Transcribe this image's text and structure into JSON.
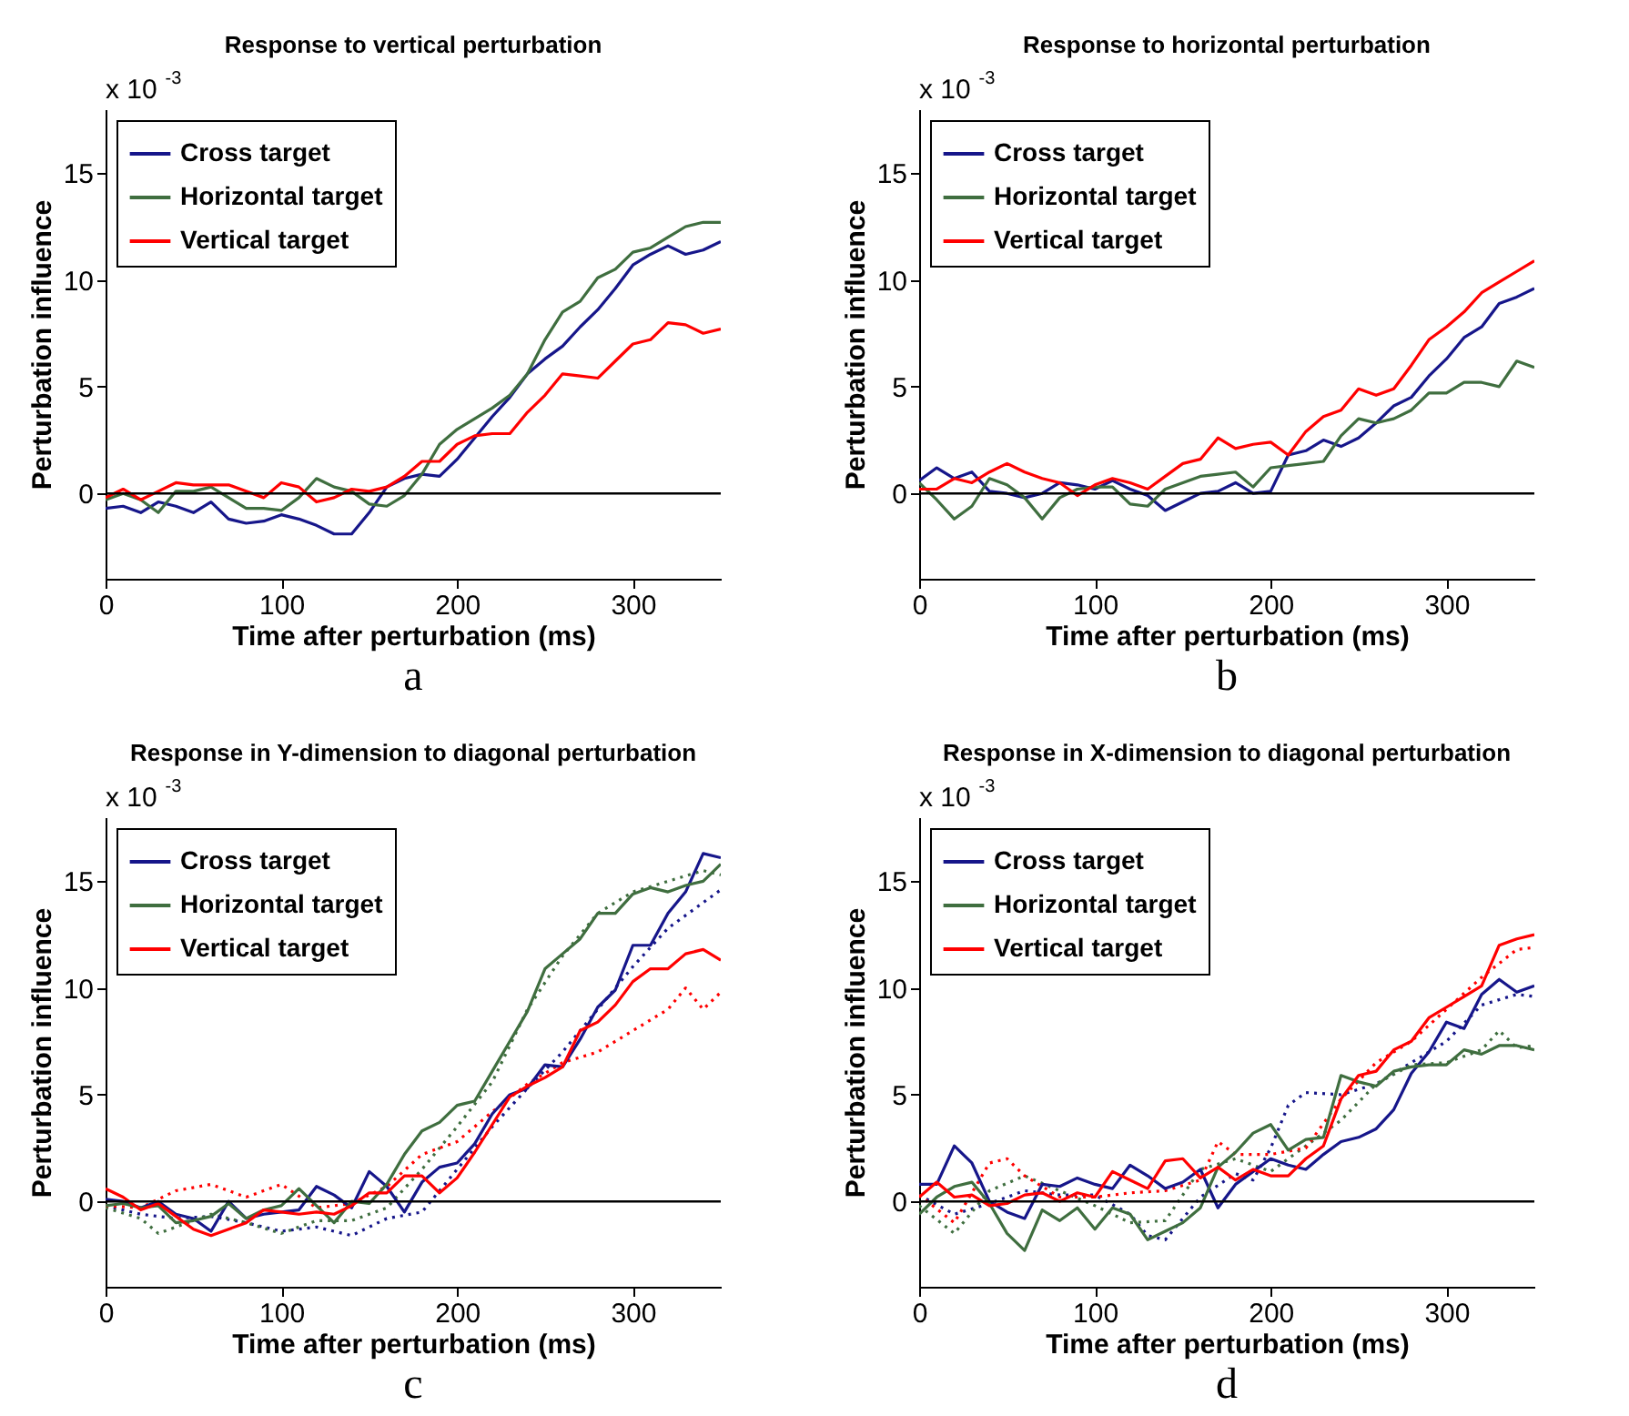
{
  "chart_data": [
    {
      "type": "line",
      "title": "Response to vertical perturbation",
      "xlabel": "Time after perturbation (ms)",
      "ylabel": "Perturbation influence",
      "xlim": [
        0,
        350
      ],
      "ylim": [
        -4,
        18
      ],
      "xticks": [
        0,
        100,
        200,
        300
      ],
      "yticks": [
        0,
        5,
        10,
        15
      ],
      "legend": "top left",
      "ref_lines": [
        {
          "axis": "y",
          "value": 0,
          "color": "#000000"
        }
      ],
      "annotations": [
        "x 10$^{-3}$",
        "a"
      ],
      "x": [
        0,
        10,
        20,
        30,
        40,
        50,
        60,
        70,
        80,
        90,
        100,
        110,
        120,
        130,
        140,
        150,
        160,
        170,
        180,
        190,
        200,
        210,
        220,
        230,
        240,
        250,
        260,
        270,
        280,
        290,
        300,
        310,
        320,
        330,
        340,
        350
      ],
      "series": [
        {
          "name": "Cross target",
          "color": "#16168a",
          "values": [
            -0.7,
            -0.6,
            -0.9,
            -0.4,
            -0.6,
            -0.9,
            -0.4,
            -1.2,
            -1.4,
            -1.3,
            -1.0,
            -1.2,
            -1.5,
            -1.9,
            -1.9,
            -0.9,
            0.3,
            0.7,
            0.9,
            0.8,
            1.6,
            2.6,
            3.6,
            4.5,
            5.6,
            6.3,
            6.9,
            7.8,
            8.6,
            9.6,
            10.7,
            11.2,
            11.6,
            11.2,
            11.4,
            11.8
          ]
        },
        {
          "name": "Horizontal target",
          "color": "#3f6e3f",
          "values": [
            -0.3,
            0.0,
            -0.3,
            -0.9,
            0.1,
            0.1,
            0.3,
            -0.2,
            -0.7,
            -0.7,
            -0.8,
            -0.2,
            0.7,
            0.3,
            0.1,
            -0.5,
            -0.6,
            -0.1,
            0.9,
            2.3,
            3.0,
            3.5,
            4.0,
            4.6,
            5.6,
            7.2,
            8.5,
            9.0,
            10.1,
            10.5,
            11.3,
            11.5,
            12.0,
            12.5,
            12.7,
            12.7
          ]
        },
        {
          "name": "Vertical target",
          "color": "#ff0000",
          "values": [
            -0.2,
            0.2,
            -0.3,
            0.1,
            0.5,
            0.4,
            0.4,
            0.4,
            0.1,
            -0.2,
            0.5,
            0.3,
            -0.4,
            -0.2,
            0.2,
            0.1,
            0.3,
            0.8,
            1.5,
            1.5,
            2.3,
            2.7,
            2.8,
            2.8,
            3.8,
            4.6,
            5.6,
            5.5,
            5.4,
            6.2,
            7.0,
            7.2,
            8.0,
            7.9,
            7.5,
            7.7
          ]
        }
      ]
    },
    {
      "type": "line",
      "title": "Response to horizontal perturbation",
      "xlabel": "Time after perturbation (ms)",
      "ylabel": "Perturbation influence",
      "xlim": [
        0,
        350
      ],
      "ylim": [
        -4,
        18
      ],
      "xticks": [
        0,
        100,
        200,
        300
      ],
      "yticks": [
        0,
        5,
        10,
        15
      ],
      "legend": "top left",
      "ref_lines": [
        {
          "axis": "y",
          "value": 0,
          "color": "#000000"
        }
      ],
      "annotations": [
        "x 10$^{-3}$",
        "b"
      ],
      "x": [
        0,
        10,
        20,
        30,
        40,
        50,
        60,
        70,
        80,
        90,
        100,
        110,
        120,
        130,
        140,
        150,
        160,
        170,
        180,
        190,
        200,
        210,
        220,
        230,
        240,
        250,
        260,
        270,
        280,
        290,
        300,
        310,
        320,
        330,
        340,
        350
      ],
      "series": [
        {
          "name": "Cross target",
          "color": "#16168a",
          "values": [
            0.6,
            1.2,
            0.7,
            1.0,
            0.1,
            0.0,
            -0.2,
            0.0,
            0.5,
            0.4,
            0.2,
            0.6,
            0.2,
            -0.1,
            -0.8,
            -0.4,
            0.0,
            0.1,
            0.5,
            0.0,
            0.1,
            1.8,
            2.0,
            2.5,
            2.2,
            2.6,
            3.3,
            4.1,
            4.5,
            5.5,
            6.3,
            7.3,
            7.8,
            8.9,
            9.2,
            9.6
          ]
        },
        {
          "name": "Horizontal target",
          "color": "#3f6e3f",
          "values": [
            0.5,
            -0.3,
            -1.2,
            -0.6,
            0.7,
            0.4,
            -0.2,
            -1.2,
            -0.2,
            0.2,
            0.3,
            0.3,
            -0.5,
            -0.6,
            0.2,
            0.5,
            0.8,
            0.9,
            1.0,
            0.3,
            1.2,
            1.3,
            1.4,
            1.5,
            2.7,
            3.5,
            3.3,
            3.5,
            3.9,
            4.7,
            4.7,
            5.2,
            5.2,
            5.0,
            6.2,
            5.9
          ]
        },
        {
          "name": "Vertical target",
          "color": "#ff0000",
          "values": [
            0.2,
            0.2,
            0.7,
            0.5,
            1.0,
            1.4,
            1.0,
            0.7,
            0.5,
            -0.1,
            0.4,
            0.7,
            0.5,
            0.2,
            0.8,
            1.4,
            1.6,
            2.6,
            2.1,
            2.3,
            2.4,
            1.8,
            2.9,
            3.6,
            3.9,
            4.9,
            4.6,
            4.9,
            6.0,
            7.2,
            7.8,
            8.5,
            9.4,
            9.9,
            10.4,
            10.9
          ]
        }
      ]
    },
    {
      "type": "line",
      "title": "Response in Y-dimension to diagonal perturbation",
      "xlabel": "Time after perturbation (ms)",
      "ylabel": "Perturbation influence",
      "xlim": [
        0,
        350
      ],
      "ylim": [
        -4,
        18
      ],
      "xticks": [
        0,
        100,
        200,
        300
      ],
      "yticks": [
        0,
        5,
        10,
        15
      ],
      "legend": "top left",
      "ref_lines": [
        {
          "axis": "y",
          "value": 0,
          "color": "#000000"
        }
      ],
      "annotations": [
        "x 10$^{-3}$",
        "c"
      ],
      "x": [
        0,
        10,
        20,
        30,
        40,
        50,
        60,
        70,
        80,
        90,
        100,
        110,
        120,
        130,
        140,
        150,
        160,
        170,
        180,
        190,
        200,
        210,
        220,
        230,
        240,
        250,
        260,
        270,
        280,
        290,
        300,
        310,
        320,
        330,
        340,
        350
      ],
      "series": [
        {
          "color": "#16168a",
          "line_style": "dotted",
          "x": [
            0,
            20,
            40,
            60,
            80,
            100,
            120,
            140,
            160,
            180,
            200,
            220,
            240,
            260,
            280,
            300,
            320,
            340,
            350
          ],
          "values": [
            -0.2,
            -0.6,
            -0.8,
            -0.7,
            -1.0,
            -1.4,
            -1.2,
            -1.6,
            -0.8,
            -0.5,
            1.5,
            3.5,
            5.3,
            7.0,
            9.0,
            11.0,
            12.8,
            14.0,
            14.6
          ]
        },
        {
          "color": "#3f6e3f",
          "line_style": "dotted",
          "x": [
            0,
            20,
            30,
            60,
            80,
            100,
            120,
            140,
            160,
            180,
            200,
            220,
            240,
            260,
            280,
            300,
            320,
            340,
            350
          ],
          "values": [
            -0.3,
            -0.8,
            -1.5,
            -0.6,
            -1.0,
            -1.5,
            -0.9,
            -0.9,
            -0.3,
            1.5,
            3.5,
            5.6,
            9.0,
            11.5,
            13.5,
            14.5,
            15.0,
            15.5,
            15.3
          ]
        },
        {
          "color": "#ff0000",
          "line_style": "dotted",
          "x": [
            0,
            20,
            40,
            60,
            80,
            100,
            120,
            140,
            160,
            180,
            200,
            220,
            240,
            260,
            280,
            300,
            320,
            330,
            340,
            350
          ],
          "values": [
            -0.2,
            -0.3,
            0.5,
            0.8,
            0.2,
            0.8,
            -0.3,
            -0.1,
            0.7,
            2.2,
            2.8,
            4.2,
            5.5,
            6.5,
            7.0,
            8.0,
            9.0,
            10.0,
            9.0,
            9.8
          ]
        },
        {
          "name": "Cross target",
          "color": "#16168a",
          "values": [
            0.1,
            0.0,
            -0.3,
            0.0,
            -0.6,
            -0.8,
            -1.4,
            0.0,
            -0.8,
            -0.6,
            -0.5,
            -0.4,
            0.7,
            0.3,
            -0.3,
            1.4,
            0.7,
            -0.5,
            0.9,
            1.6,
            1.8,
            2.7,
            4.1,
            5.0,
            5.3,
            6.4,
            6.3,
            7.6,
            9.1,
            9.9,
            12.0,
            12.0,
            13.5,
            14.5,
            16.3,
            16.1
          ]
        },
        {
          "name": "Horizontal target",
          "color": "#3f6e3f",
          "values": [
            -0.2,
            -0.1,
            -0.3,
            -0.2,
            -1.0,
            -0.9,
            -0.7,
            -0.1,
            -0.8,
            -0.4,
            -0.2,
            0.6,
            -0.2,
            -1.0,
            0.0,
            -0.1,
            0.8,
            2.2,
            3.3,
            3.7,
            4.5,
            4.7,
            6.1,
            7.5,
            8.9,
            10.9,
            11.6,
            12.3,
            13.5,
            13.5,
            14.4,
            14.7,
            14.5,
            14.8,
            15.0,
            15.8
          ]
        },
        {
          "name": "Vertical target",
          "color": "#ff0000",
          "values": [
            0.6,
            0.2,
            -0.4,
            -0.1,
            -0.7,
            -1.3,
            -1.6,
            -1.3,
            -1.0,
            -0.4,
            -0.5,
            -0.6,
            -0.5,
            -0.6,
            -0.2,
            0.4,
            0.4,
            1.2,
            1.2,
            0.4,
            1.1,
            2.3,
            3.6,
            4.9,
            5.4,
            5.8,
            6.3,
            8.0,
            8.4,
            9.2,
            10.3,
            10.9,
            10.9,
            11.6,
            11.8,
            11.3
          ]
        }
      ]
    },
    {
      "type": "line",
      "title": "Response in X-dimension to diagonal perturbation",
      "xlabel": "Time after perturbation (ms)",
      "ylabel": "Perturbation influence",
      "xlim": [
        0,
        350
      ],
      "ylim": [
        -4,
        18
      ],
      "xticks": [
        0,
        100,
        200,
        300
      ],
      "yticks": [
        0,
        5,
        10,
        15
      ],
      "legend": "top left",
      "ref_lines": [
        {
          "axis": "y",
          "value": 0,
          "color": "#000000"
        }
      ],
      "annotations": [
        "x 10$^{-3}$",
        "d"
      ],
      "x": [
        0,
        10,
        20,
        30,
        40,
        50,
        60,
        70,
        80,
        90,
        100,
        110,
        120,
        130,
        140,
        150,
        160,
        170,
        180,
        190,
        200,
        210,
        220,
        230,
        240,
        250,
        260,
        270,
        280,
        290,
        300,
        310,
        320,
        330,
        340,
        350
      ],
      "series": [
        {
          "color": "#16168a",
          "line_style": "dotted",
          "x": [
            0,
            20,
            40,
            60,
            80,
            100,
            120,
            130,
            140,
            160,
            180,
            190,
            200,
            210,
            220,
            240,
            260,
            280,
            300,
            320,
            340,
            350
          ],
          "values": [
            0.3,
            -0.6,
            -0.1,
            0.5,
            0.3,
            0.3,
            -0.6,
            -1.6,
            -1.8,
            0.2,
            1.3,
            1.0,
            2.5,
            4.5,
            5.1,
            5.0,
            5.5,
            6.5,
            7.5,
            9.2,
            9.7,
            9.6
          ]
        },
        {
          "color": "#3f6e3f",
          "line_style": "dotted",
          "x": [
            0,
            20,
            30,
            40,
            60,
            80,
            100,
            120,
            140,
            160,
            180,
            200,
            220,
            240,
            260,
            280,
            300,
            320,
            330,
            340,
            350
          ],
          "values": [
            -0.2,
            -1.5,
            -0.5,
            0.5,
            1.2,
            0.5,
            -0.2,
            -1.0,
            -0.9,
            1.5,
            2.0,
            1.4,
            2.6,
            3.8,
            5.5,
            6.4,
            6.5,
            7.1,
            8.0,
            7.2,
            7.3
          ]
        },
        {
          "color": "#ff0000",
          "line_style": "dotted",
          "x": [
            0,
            20,
            40,
            50,
            60,
            80,
            100,
            120,
            140,
            160,
            170,
            180,
            200,
            220,
            240,
            260,
            280,
            300,
            320,
            340,
            350
          ],
          "values": [
            0.3,
            -1.0,
            1.8,
            2.0,
            1.2,
            0.2,
            0.2,
            0.4,
            0.5,
            1.0,
            2.8,
            2.2,
            2.2,
            2.5,
            4.8,
            6.5,
            7.5,
            9.0,
            10.5,
            11.8,
            11.9
          ]
        },
        {
          "name": "Cross target",
          "color": "#16168a",
          "values": [
            0.8,
            0.8,
            2.6,
            1.8,
            0.0,
            -0.5,
            -0.8,
            0.8,
            0.7,
            1.1,
            0.8,
            0.6,
            1.7,
            1.2,
            0.6,
            0.9,
            1.5,
            -0.3,
            0.8,
            1.4,
            2.0,
            1.7,
            1.5,
            2.2,
            2.8,
            3.0,
            3.4,
            4.3,
            6.0,
            7.0,
            8.4,
            8.1,
            9.7,
            10.4,
            9.8,
            10.1
          ]
        },
        {
          "name": "Horizontal target",
          "color": "#3f6e3f",
          "values": [
            -0.6,
            0.2,
            0.7,
            0.9,
            -0.1,
            -1.5,
            -2.3,
            -0.4,
            -0.9,
            -0.3,
            -1.3,
            -0.3,
            -0.6,
            -1.8,
            -1.4,
            -1.0,
            -0.3,
            1.6,
            2.3,
            3.2,
            3.6,
            2.4,
            2.9,
            3.0,
            5.9,
            5.6,
            5.4,
            6.1,
            6.3,
            6.4,
            6.4,
            7.1,
            6.9,
            7.3,
            7.3,
            7.1
          ]
        },
        {
          "name": "Vertical target",
          "color": "#ff0000",
          "values": [
            0.2,
            0.9,
            0.2,
            0.3,
            -0.2,
            -0.1,
            0.3,
            0.4,
            0.0,
            0.4,
            0.2,
            1.4,
            1.0,
            0.6,
            1.9,
            2.0,
            1.1,
            1.6,
            1.0,
            1.5,
            1.2,
            1.2,
            2.0,
            2.6,
            4.8,
            5.9,
            6.1,
            7.1,
            7.5,
            8.6,
            9.1,
            9.6,
            10.1,
            12.0,
            12.3,
            12.5
          ]
        }
      ]
    }
  ]
}
